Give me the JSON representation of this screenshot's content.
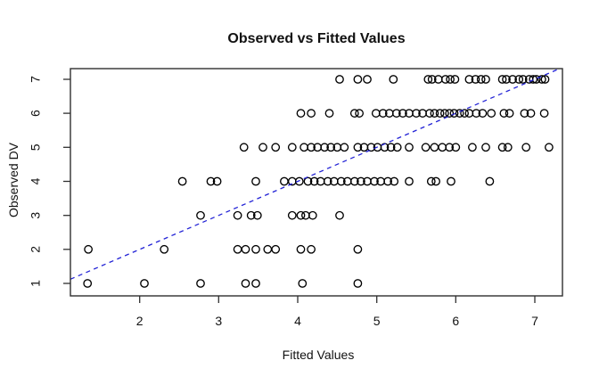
{
  "chart_data": {
    "type": "scatter",
    "title": "Observed vs Fitted Values",
    "xlabel": "Fitted Values",
    "ylabel": "Observed DV",
    "xticks": [
      "2",
      "3",
      "4",
      "5",
      "6",
      "7"
    ],
    "yticks": [
      "1",
      "2",
      "3",
      "4",
      "5",
      "6",
      "7"
    ],
    "xlim": [
      1.12,
      7.35
    ],
    "ylim": [
      0.63,
      7.31
    ],
    "grid": false,
    "legend": "none",
    "marker": {
      "shape": "open-circle",
      "color": "#000000"
    },
    "reference_line": {
      "slope": 1,
      "intercept": 0,
      "style": "dashed",
      "color": "#2323d6",
      "meaning": "identity line y = x"
    },
    "series": [
      {
        "observed": 1,
        "fitted": [
          1.34,
          2.06,
          2.77,
          3.34,
          3.47,
          4.06,
          4.76
        ]
      },
      {
        "observed": 2,
        "fitted": [
          1.35,
          2.31,
          3.24,
          3.34,
          3.47,
          3.62,
          3.72,
          4.04,
          4.17,
          4.76
        ]
      },
      {
        "observed": 3,
        "fitted": [
          2.77,
          3.24,
          3.41,
          3.49,
          3.93,
          4.04,
          4.1,
          4.19,
          4.53
        ]
      },
      {
        "observed": 4,
        "fitted": [
          2.54,
          2.9,
          2.98,
          3.47,
          3.83,
          3.93,
          4.02,
          4.13,
          4.21,
          4.29,
          4.38,
          4.46,
          4.55,
          4.63,
          4.72,
          4.8,
          4.88,
          4.97,
          5.05,
          5.14,
          5.22,
          5.41,
          5.69,
          5.75,
          5.94,
          6.43
        ]
      },
      {
        "observed": 5,
        "fitted": [
          3.32,
          3.56,
          3.72,
          3.93,
          4.08,
          4.17,
          4.25,
          4.34,
          4.42,
          4.5,
          4.59,
          4.76,
          4.84,
          4.93,
          5.01,
          5.1,
          5.18,
          5.26,
          5.41,
          5.62,
          5.73,
          5.83,
          5.92,
          6.0,
          6.21,
          6.38,
          6.59,
          6.66,
          6.89,
          7.18
        ]
      },
      {
        "observed": 6,
        "fitted": [
          4.04,
          4.17,
          4.4,
          4.72,
          4.78,
          4.99,
          5.08,
          5.16,
          5.25,
          5.33,
          5.41,
          5.5,
          5.58,
          5.67,
          5.73,
          5.8,
          5.86,
          5.92,
          5.98,
          6.05,
          6.11,
          6.17,
          6.26,
          6.34,
          6.45,
          6.61,
          6.68,
          6.87,
          6.95,
          7.12
        ]
      },
      {
        "observed": 7,
        "fitted": [
          4.53,
          4.76,
          4.88,
          5.21,
          5.65,
          5.7,
          5.78,
          5.87,
          5.93,
          5.99,
          6.17,
          6.25,
          6.32,
          6.38,
          6.59,
          6.64,
          6.72,
          6.8,
          6.85,
          6.93,
          6.98,
          7.02,
          7.09,
          7.13
        ]
      }
    ]
  }
}
